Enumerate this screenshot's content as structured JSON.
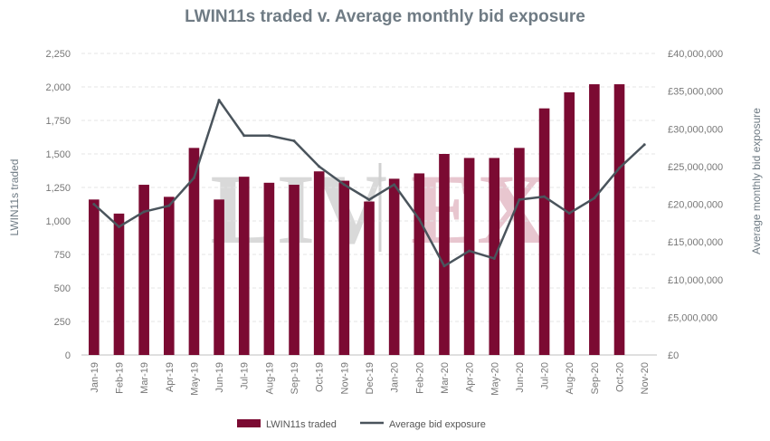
{
  "chart_data": {
    "type": "bar",
    "title": "LWIN11s traded v. Average monthly bid exposure",
    "ylabel": "LWIN11s traded",
    "y2label": "Average monthly bid exposure",
    "categories": [
      "Jan-19",
      "Feb-19",
      "Mar-19",
      "Apr-19",
      "May-19",
      "Jun-19",
      "Jul-19",
      "Aug-19",
      "Sep-19",
      "Oct-19",
      "Nov-19",
      "Dec-19",
      "Jan-20",
      "Feb-20",
      "Mar-20",
      "Apr-20",
      "May-20",
      "Jun-20",
      "Jul-20",
      "Aug-20",
      "Sep-20",
      "Oct-20",
      "Nov-20"
    ],
    "series": [
      {
        "name": "LWIN11s traded",
        "kind": "bar",
        "axis": "left",
        "color": "#7b0a32",
        "values": [
          1160,
          1055,
          1270,
          1180,
          1545,
          1160,
          1330,
          1285,
          1270,
          1370,
          1300,
          1145,
          1315,
          1355,
          1500,
          1470,
          1470,
          1545,
          1840,
          1960,
          2020,
          2020,
          null
        ]
      },
      {
        "name": "Average bid exposure",
        "kind": "line",
        "axis": "right",
        "color": "#4a545c",
        "values": [
          20000000,
          17000000,
          19000000,
          19800000,
          23500000,
          33800000,
          29100000,
          29100000,
          28400000,
          25000000,
          22600000,
          20600000,
          22600000,
          18000000,
          11800000,
          13800000,
          12800000,
          20600000,
          21000000,
          18800000,
          20800000,
          24800000,
          27900000
        ]
      }
    ],
    "ylim": [
      0,
      2250
    ],
    "yticks": [
      "0",
      "250",
      "500",
      "750",
      "1,000",
      "1,250",
      "1,500",
      "1,750",
      "2,000",
      "2,250"
    ],
    "y2lim": [
      0,
      40000000
    ],
    "y2ticks": [
      "£0",
      "£5,000,000",
      "£10,000,000",
      "£15,000,000",
      "£20,000,000",
      "£25,000,000",
      "£30,000,000",
      "£35,000,000",
      "£40,000,000"
    ],
    "grid": true,
    "legend": "bottom-center",
    "watermark": "LIV-EX",
    "watermark_parts": [
      "LIV",
      "EX"
    ]
  }
}
